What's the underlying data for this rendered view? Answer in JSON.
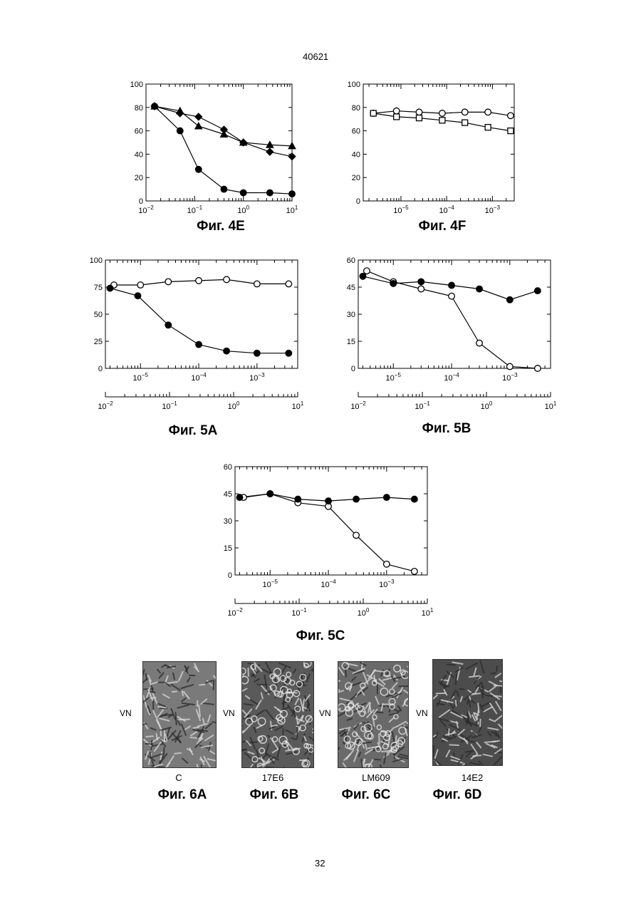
{
  "header": {
    "patent_number": "40621"
  },
  "footer": {
    "page_number": "32"
  },
  "figures": {
    "f4e": {
      "caption": "Фиг. 4E"
    },
    "f4f": {
      "caption": "Фиг. 4F"
    },
    "f5a": {
      "caption": "Фиг. 5A"
    },
    "f5b": {
      "caption": "Фиг. 5B"
    },
    "f5c": {
      "caption": "Фиг. 5C"
    }
  },
  "photos": [
    {
      "caption": "Фиг. 6A",
      "label": "C",
      "side_label": "VN",
      "tone": "#7a7a7a"
    },
    {
      "caption": "Фиг. 6B",
      "label": "17E6",
      "side_label": "VN",
      "tone": "#5a5a5a"
    },
    {
      "caption": "Фиг. 6C",
      "label": "LM609",
      "side_label": "VN",
      "tone": "#6a6a6a"
    },
    {
      "caption": "Фиг. 6D",
      "label": "14E2",
      "side_label": "VN",
      "tone": "#4c4c4c"
    }
  ],
  "chart_data": [
    {
      "id": "f4e",
      "type": "line",
      "title": "Фиг. 4E",
      "x_scale": "log",
      "xlim": [
        0.01,
        10
      ],
      "ylim": [
        0,
        100
      ],
      "yticks": [
        0,
        20,
        40,
        60,
        80,
        100
      ],
      "series": [
        {
          "marker": "filled-circle",
          "x": [
            0.015,
            0.05,
            0.12,
            0.4,
            1,
            3.5,
            10
          ],
          "y": [
            81,
            60,
            27,
            10,
            7,
            7,
            6
          ]
        },
        {
          "marker": "filled-triangle",
          "x": [
            0.015,
            0.05,
            0.12,
            0.4,
            1,
            3.5,
            10
          ],
          "y": [
            81,
            77,
            64,
            57,
            50,
            48,
            47
          ]
        },
        {
          "marker": "filled-diamond",
          "x": [
            0.015,
            0.05,
            0.12,
            0.4,
            1,
            3.5,
            10
          ],
          "y": [
            81,
            75,
            72,
            61,
            50,
            42,
            38
          ]
        }
      ]
    },
    {
      "id": "f4f",
      "type": "line",
      "title": "Фиг. 4F",
      "x_scale": "log",
      "xlim": [
        1.5e-06,
        0.003
      ],
      "ylim": [
        0,
        100
      ],
      "yticks": [
        0,
        20,
        40,
        60,
        80,
        100
      ],
      "series": [
        {
          "marker": "open-circle",
          "x": [
            2.5e-06,
            8e-06,
            2.5e-05,
            8e-05,
            0.00025,
            0.0008,
            0.0025
          ],
          "y": [
            75,
            77,
            76,
            75,
            76,
            76,
            73
          ]
        },
        {
          "marker": "open-square",
          "x": [
            2.5e-06,
            8e-06,
            2.5e-05,
            8e-05,
            0.00025,
            0.0008,
            0.0025
          ],
          "y": [
            75,
            72,
            71,
            69,
            67,
            63,
            60
          ]
        }
      ]
    },
    {
      "id": "f5a",
      "type": "line",
      "title": "Фиг. 5A",
      "x_scale": "log",
      "xlim": [
        2.5e-06,
        0.005
      ],
      "ylim": [
        0,
        100
      ],
      "yticks": [
        0,
        25,
        50,
        75,
        100
      ],
      "secondary_x": {
        "scale": "log",
        "xlim": [
          0.01,
          10
        ]
      },
      "series": [
        {
          "marker": "open-circle",
          "x": [
            3.5e-06,
            1e-05,
            3e-05,
            0.0001,
            0.0003,
            0.001,
            0.0035
          ],
          "y": [
            77,
            77,
            80,
            81,
            82,
            78,
            78
          ]
        },
        {
          "marker": "filled-circle",
          "x": [
            3e-06,
            9e-06,
            3e-05,
            0.0001,
            0.0003,
            0.001,
            0.0035
          ],
          "y": [
            74,
            67,
            40,
            22,
            16,
            14,
            14
          ]
        }
      ]
    },
    {
      "id": "f5b",
      "type": "line",
      "title": "Фиг. 5B",
      "x_scale": "log",
      "xlim": [
        2.5e-06,
        0.005
      ],
      "ylim": [
        0,
        60
      ],
      "yticks": [
        0,
        15,
        30,
        45,
        60
      ],
      "secondary_x": {
        "scale": "log",
        "xlim": [
          0.01,
          10
        ]
      },
      "series": [
        {
          "marker": "open-circle",
          "x": [
            3.5e-06,
            1e-05,
            3e-05,
            0.0001,
            0.0003,
            0.001,
            0.003
          ],
          "y": [
            54,
            48,
            44,
            40,
            14,
            1,
            0
          ]
        },
        {
          "marker": "filled-circle",
          "x": [
            3e-06,
            1e-05,
            3e-05,
            0.0001,
            0.0003,
            0.001,
            0.003
          ],
          "y": [
            51,
            47,
            48,
            46,
            44,
            38,
            43
          ]
        }
      ]
    },
    {
      "id": "f5c",
      "type": "line",
      "title": "Фиг. 5C",
      "x_scale": "log",
      "xlim": [
        2.5e-06,
        0.005
      ],
      "ylim": [
        0,
        60
      ],
      "yticks": [
        0,
        15,
        30,
        45,
        60
      ],
      "secondary_x": {
        "scale": "log",
        "xlim": [
          0.01,
          10
        ]
      },
      "series": [
        {
          "marker": "open-circle",
          "x": [
            3.5e-06,
            1e-05,
            3e-05,
            0.0001,
            0.0003,
            0.001,
            0.003
          ],
          "y": [
            43,
            45,
            40,
            38,
            22,
            6,
            2
          ]
        },
        {
          "marker": "filled-circle",
          "x": [
            3e-06,
            1e-05,
            3e-05,
            0.0001,
            0.0003,
            0.001,
            0.003
          ],
          "y": [
            43,
            45,
            42,
            41,
            42,
            43,
            42
          ]
        }
      ]
    }
  ]
}
